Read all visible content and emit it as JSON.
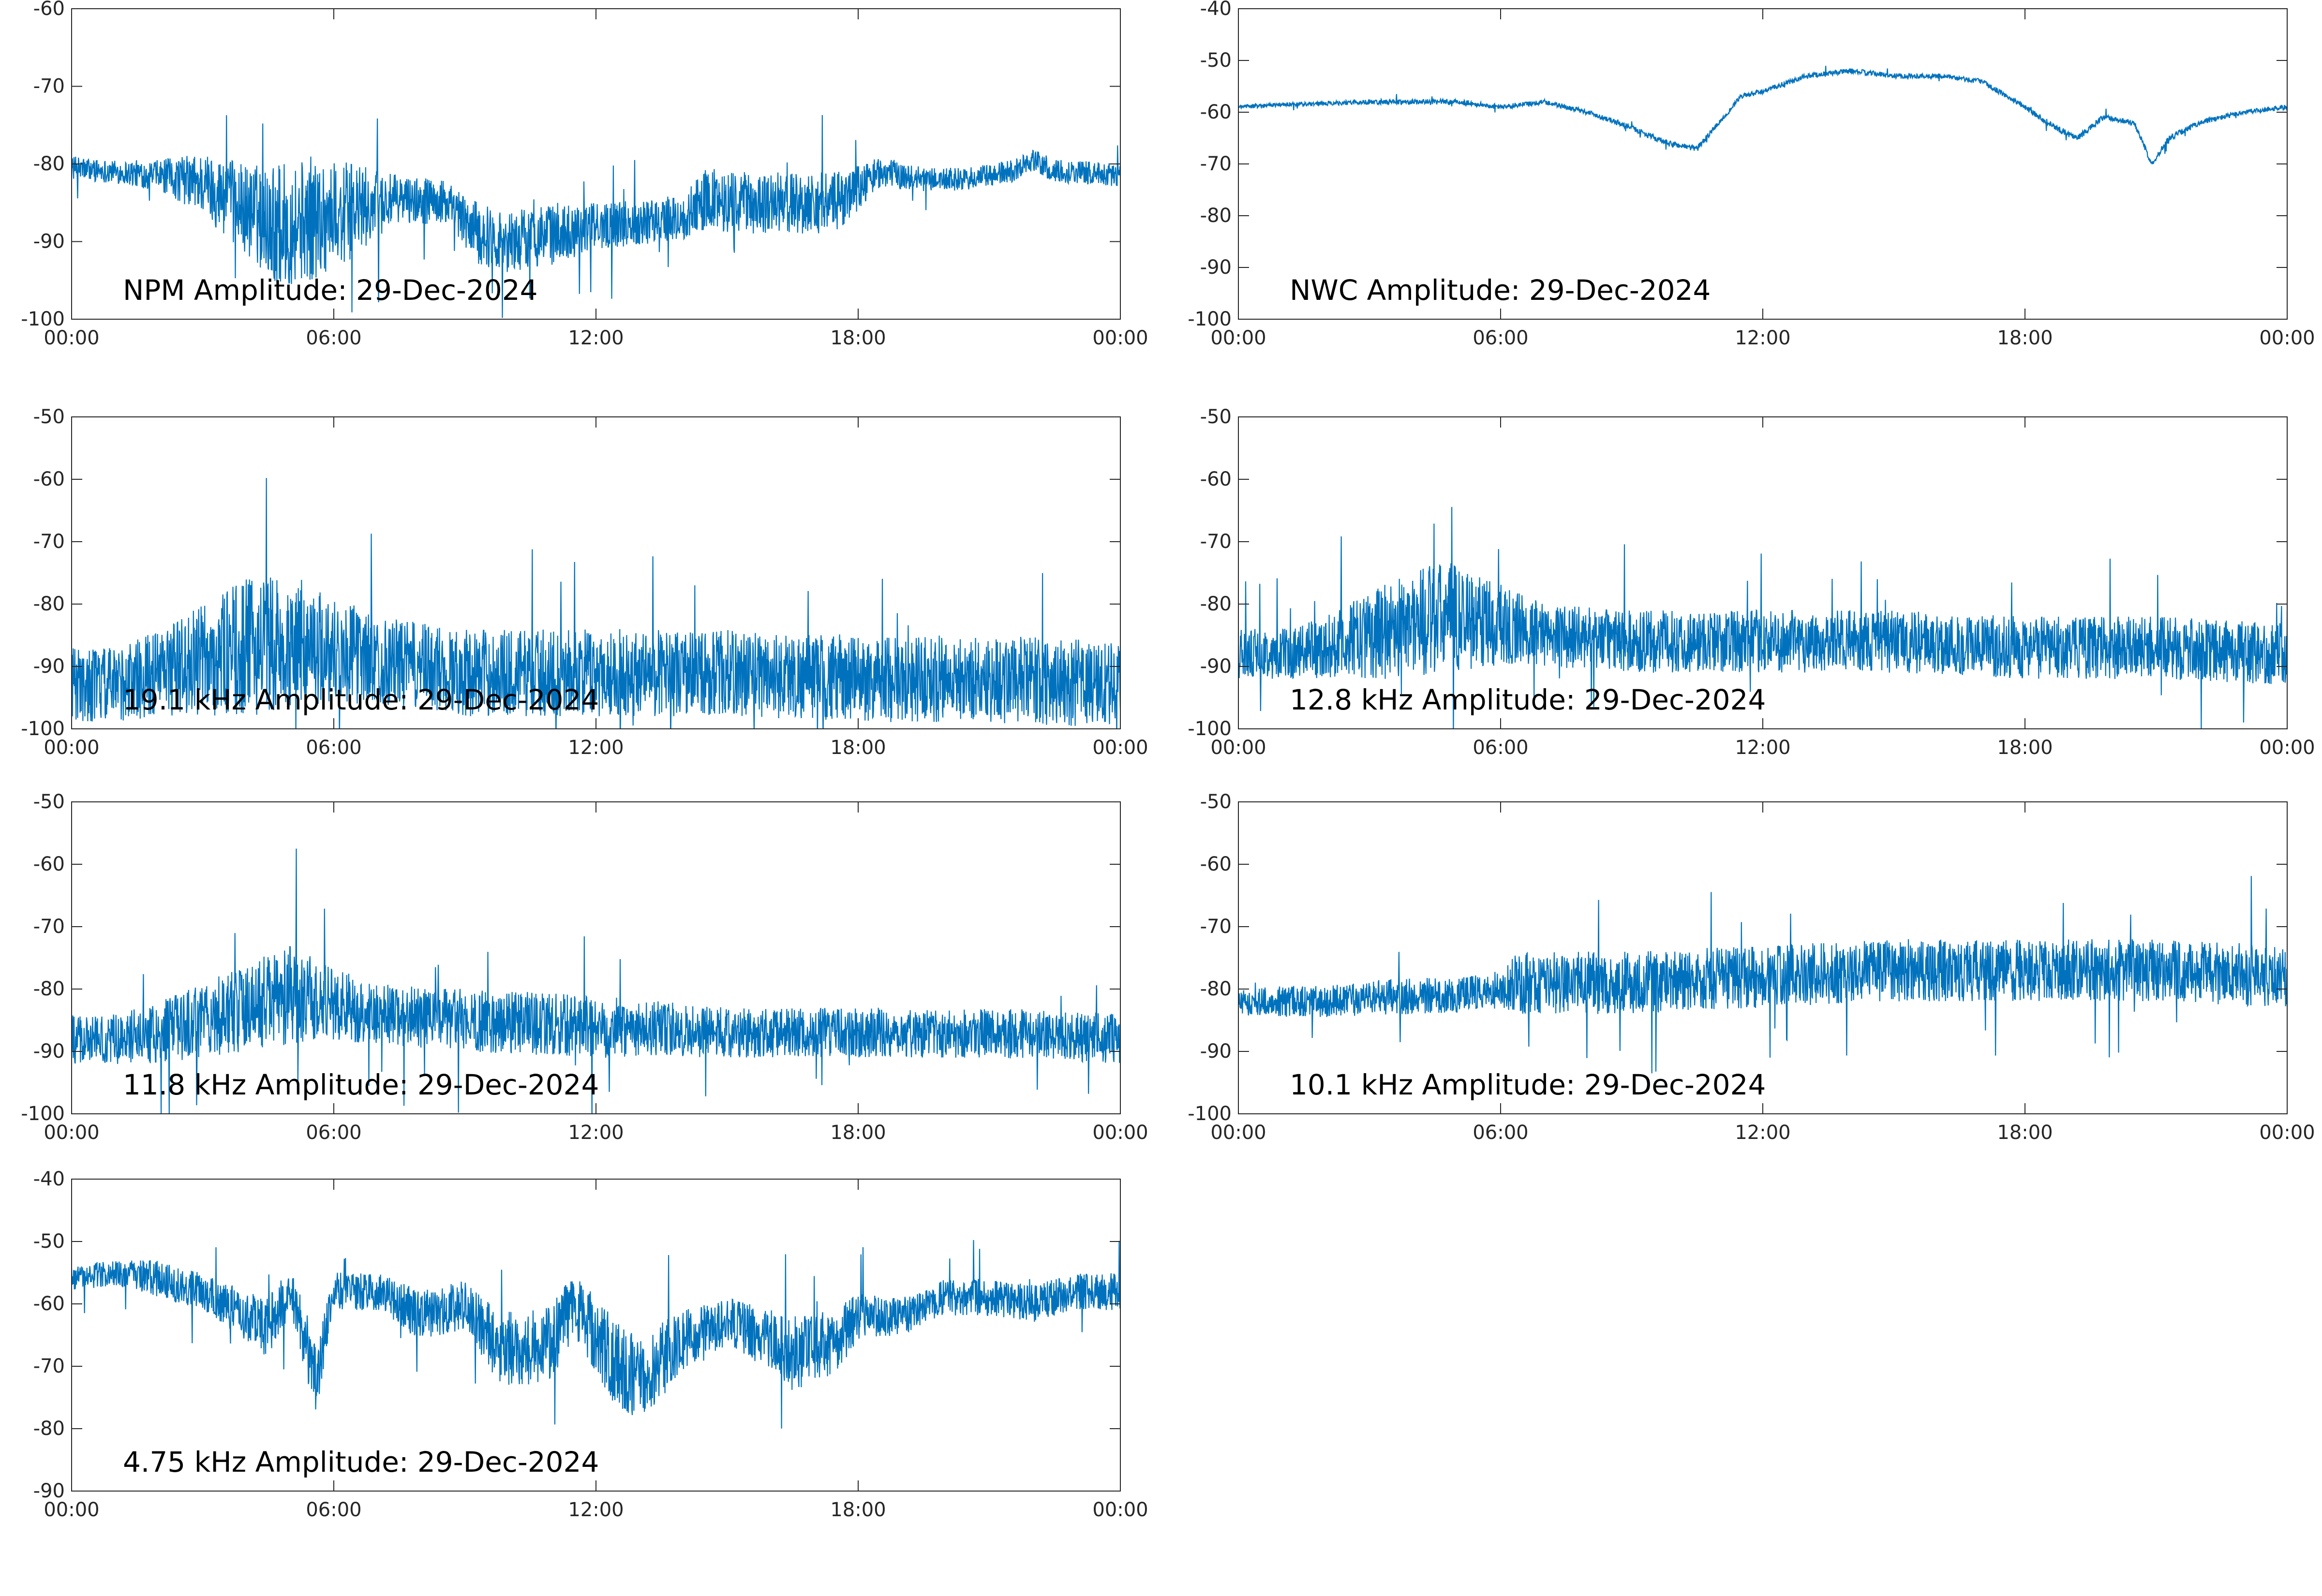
{
  "colors": {
    "series": "#0072BD",
    "axis": "#262626",
    "background": "#ffffff"
  },
  "chart_data": [
    {
      "type": "line",
      "title": "NPM Amplitude: 29-Dec-2024",
      "xlabel": "",
      "ylabel": "",
      "xticks": [
        "00:00",
        "06:00",
        "12:00",
        "18:00",
        "00:00"
      ],
      "xlim": [
        0,
        24
      ],
      "ylim": [
        -100,
        -60
      ],
      "yticks": [
        -60,
        -70,
        -80,
        -90,
        -100
      ],
      "grid": false,
      "series": [
        {
          "x": [
            0,
            1,
            2,
            3,
            4,
            4.8,
            5.5,
            6.5,
            7.5,
            8.5,
            9.3,
            10,
            11,
            12,
            13,
            14,
            14.5,
            15.5,
            16.5,
            17.5,
            18.5,
            19.5,
            20.5,
            21.5,
            22,
            22.5,
            23,
            24
          ],
          "y": [
            -80.5,
            -81,
            -81.5,
            -82.5,
            -86,
            -88,
            -87,
            -86,
            -84.5,
            -85,
            -89,
            -90,
            -89,
            -88,
            -87.5,
            -87,
            -84.5,
            -85,
            -85,
            -85,
            -81,
            -82,
            -82,
            -81,
            -79.5,
            -81,
            -81,
            -81.5
          ],
          "noise": [
            1.5,
            1.5,
            2,
            4,
            6,
            8,
            8,
            6,
            3,
            3,
            4,
            4,
            4,
            3,
            3,
            3,
            4,
            4,
            4,
            4,
            2,
            1.5,
            1.5,
            1.5,
            1.5,
            1.5,
            1.5,
            1.5
          ]
        }
      ]
    },
    {
      "type": "line",
      "title": "NWC Amplitude: 29-Dec-2024",
      "xlabel": "",
      "ylabel": "",
      "xticks": [
        "00:00",
        "06:00",
        "12:00",
        "18:00",
        "00:00"
      ],
      "xlim": [
        0,
        24
      ],
      "ylim": [
        -100,
        -40
      ],
      "yticks": [
        -40,
        -50,
        -60,
        -70,
        -80,
        -90,
        -100
      ],
      "grid": false,
      "series": [
        {
          "x": [
            0,
            1,
            2,
            3,
            4,
            5,
            6,
            7,
            8,
            9,
            9.8,
            10.5,
            11,
            11.5,
            12,
            13,
            14,
            15,
            16,
            17,
            18,
            18.7,
            19.2,
            19.8,
            20.5,
            20.9,
            21.3,
            22,
            23,
            24
          ],
          "y": [
            -59,
            -58.5,
            -58.3,
            -58,
            -58,
            -58,
            -59,
            -58,
            -60,
            -63,
            -66,
            -67,
            -62,
            -57,
            -56,
            -53,
            -52,
            -53,
            -53,
            -54,
            -59,
            -63,
            -65,
            -61,
            -62,
            -70,
            -65,
            -62,
            -60,
            -59
          ],
          "noise": [
            0.4,
            0.4,
            0.4,
            0.5,
            0.5,
            0.5,
            0.5,
            0.5,
            0.5,
            0.5,
            0.6,
            0.6,
            0.5,
            0.5,
            0.5,
            0.5,
            0.5,
            0.5,
            0.5,
            0.5,
            0.5,
            0.6,
            0.6,
            0.6,
            0.5,
            0.6,
            0.6,
            0.5,
            0.5,
            0.5
          ]
        }
      ]
    },
    {
      "type": "line",
      "title": "19.1 kHz Amplitude: 29-Dec-2024",
      "xlabel": "",
      "ylabel": "",
      "xticks": [
        "00:00",
        "06:00",
        "12:00",
        "18:00",
        "00:00"
      ],
      "xlim": [
        0,
        24
      ],
      "ylim": [
        -100,
        -50
      ],
      "yticks": [
        -50,
        -60,
        -70,
        -80,
        -90,
        -100
      ],
      "grid": false,
      "series": [
        {
          "x": [
            0,
            1,
            2,
            3,
            4,
            5,
            5.8,
            7,
            9,
            12,
            15,
            18,
            21,
            24
          ],
          "y": [
            -93,
            -93,
            -91,
            -89,
            -87,
            -86,
            -87,
            -89,
            -91,
            -91,
            -91,
            -92,
            -92,
            -93
          ],
          "noise": [
            6,
            6,
            7,
            9,
            11,
            11,
            9,
            7,
            7,
            7,
            7,
            7,
            7,
            7
          ]
        }
      ]
    },
    {
      "type": "line",
      "title": "12.8 kHz Amplitude: 29-Dec-2024",
      "xlabel": "",
      "ylabel": "",
      "xticks": [
        "00:00",
        "06:00",
        "12:00",
        "18:00",
        "00:00"
      ],
      "xlim": [
        0,
        24
      ],
      "ylim": [
        -100,
        -50
      ],
      "yticks": [
        -50,
        -60,
        -70,
        -80,
        -90,
        -100
      ],
      "grid": false,
      "series": [
        {
          "x": [
            0,
            1,
            2,
            3,
            4,
            5,
            5.8,
            7,
            9,
            12,
            15,
            18,
            21,
            24
          ],
          "y": [
            -88,
            -88,
            -87,
            -85,
            -83,
            -82,
            -83,
            -85,
            -86,
            -86,
            -86,
            -87,
            -87,
            -88
          ],
          "noise": [
            4,
            4,
            5,
            7,
            9,
            9,
            7,
            5,
            5,
            5,
            5,
            5,
            5,
            5
          ]
        }
      ]
    },
    {
      "type": "line",
      "title": "11.8 kHz Amplitude: 29-Dec-2024",
      "xlabel": "",
      "ylabel": "",
      "xticks": [
        "00:00",
        "06:00",
        "12:00",
        "18:00",
        "00:00"
      ],
      "xlim": [
        0,
        24
      ],
      "ylim": [
        -100,
        -50
      ],
      "yticks": [
        -50,
        -60,
        -70,
        -80,
        -90,
        -100
      ],
      "grid": false,
      "series": [
        {
          "x": [
            0,
            1,
            2,
            3,
            4,
            5,
            5.8,
            7,
            9,
            12,
            15,
            18,
            21,
            24
          ],
          "y": [
            -88,
            -88,
            -87,
            -85,
            -83,
            -81,
            -82,
            -84,
            -85,
            -86,
            -87,
            -87,
            -87,
            -88
          ],
          "noise": [
            4,
            4,
            5,
            6,
            7,
            8,
            6,
            5,
            5,
            5,
            4,
            4,
            4,
            4
          ]
        }
      ]
    },
    {
      "type": "line",
      "title": "10.1 kHz Amplitude: 29-Dec-2024",
      "xlabel": "",
      "ylabel": "",
      "xticks": [
        "00:00",
        "06:00",
        "12:00",
        "18:00",
        "00:00"
      ],
      "xlim": [
        0,
        24
      ],
      "ylim": [
        -100,
        -50
      ],
      "yticks": [
        -50,
        -60,
        -70,
        -80,
        -90,
        -100
      ],
      "grid": false,
      "series": [
        {
          "x": [
            0,
            2,
            4,
            5,
            6,
            6.4,
            9,
            12,
            15,
            18,
            21,
            24
          ],
          "y": [
            -82,
            -82,
            -81,
            -81,
            -80,
            -79,
            -79,
            -78,
            -77,
            -77,
            -77,
            -78
          ],
          "noise": [
            2.5,
            2.5,
            3,
            3,
            3,
            5,
            5,
            5,
            5,
            5,
            5,
            5
          ]
        }
      ]
    },
    {
      "type": "line",
      "title": "4.75 kHz Amplitude: 29-Dec-2024",
      "xlabel": "",
      "ylabel": "",
      "xticks": [
        "00:00",
        "06:00",
        "12:00",
        "18:00",
        "00:00"
      ],
      "xlim": [
        0,
        24
      ],
      "ylim": [
        -90,
        -40
      ],
      "yticks": [
        -40,
        -50,
        -60,
        -70,
        -80,
        -90
      ],
      "grid": false,
      "series": [
        {
          "x": [
            0,
            1,
            2,
            3,
            4,
            4.5,
            5,
            5.6,
            6,
            7,
            8,
            9,
            9.8,
            10.5,
            11,
            11.5,
            12.5,
            13,
            14,
            15,
            16,
            16.5,
            17.5,
            18,
            19,
            20,
            21,
            22,
            23,
            24
          ],
          "y": [
            -56,
            -55,
            -56,
            -58,
            -62,
            -64,
            -58,
            -72,
            -58,
            -58,
            -62,
            -60,
            -67,
            -67,
            -66,
            -60,
            -70,
            -72,
            -66,
            -63,
            -66,
            -68,
            -66,
            -62,
            -62,
            -59,
            -59,
            -60,
            -58,
            -58
          ],
          "noise": [
            2,
            2,
            3,
            3,
            4,
            5,
            4,
            6,
            3,
            3,
            4,
            4,
            6,
            6,
            6,
            5,
            7,
            7,
            5,
            4,
            5,
            6,
            5,
            4,
            3,
            3,
            3,
            3,
            3,
            3
          ]
        }
      ]
    }
  ]
}
